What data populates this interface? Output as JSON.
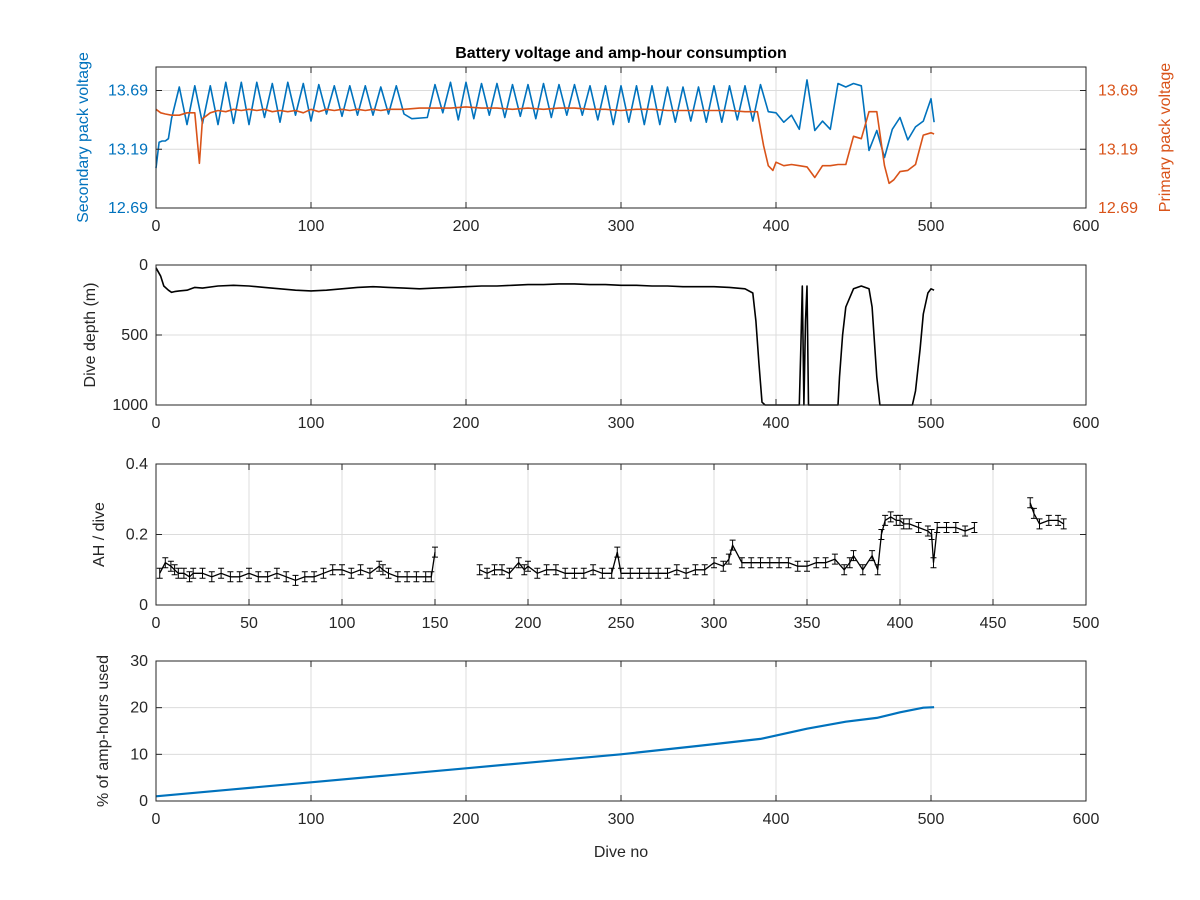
{
  "figure": {
    "title": "Battery voltage and amp-hour consumption"
  },
  "colors": {
    "secondary": "#0072bd",
    "primary": "#d95319",
    "black": "#000000",
    "blue_line": "#0072bd"
  },
  "chart_data": [
    {
      "type": "line",
      "title": "Battery voltage and amp-hour consumption",
      "xlabel": "",
      "ylabel": "Secondary pack voltage",
      "y2label": "Primary pack voltage",
      "xlim": [
        0,
        600
      ],
      "ylim": [
        12.69,
        13.89
      ],
      "y2lim": [
        12.69,
        13.89
      ],
      "xticks": [
        "0",
        "100",
        "200",
        "300",
        "400",
        "500",
        "600"
      ],
      "yticks": [
        "12.69",
        "13.19",
        "13.69"
      ],
      "y2ticks": [
        "12.69",
        "13.19",
        "13.69"
      ],
      "grid": true,
      "series": [
        {
          "name": "Secondary pack voltage",
          "axis": "left",
          "x": [
            0,
            2,
            4,
            6,
            8,
            10,
            15,
            20,
            25,
            30,
            35,
            40,
            45,
            50,
            55,
            60,
            65,
            70,
            75,
            80,
            85,
            90,
            95,
            100,
            105,
            110,
            115,
            120,
            125,
            130,
            135,
            140,
            145,
            150,
            155,
            160,
            165,
            175,
            180,
            185,
            190,
            195,
            200,
            205,
            210,
            215,
            220,
            225,
            230,
            235,
            240,
            245,
            250,
            255,
            260,
            265,
            270,
            275,
            280,
            285,
            290,
            295,
            300,
            305,
            310,
            315,
            320,
            325,
            330,
            335,
            340,
            345,
            350,
            355,
            360,
            365,
            370,
            375,
            380,
            385,
            390,
            395,
            400,
            405,
            410,
            415,
            420,
            425,
            430,
            435,
            440,
            445,
            450,
            455,
            460,
            465,
            470,
            475,
            480,
            485,
            490,
            495,
            500,
            502
          ],
          "y": [
            13.03,
            13.25,
            13.26,
            13.26,
            13.28,
            13.45,
            13.72,
            13.4,
            13.73,
            13.41,
            13.73,
            13.4,
            13.76,
            13.41,
            13.76,
            13.4,
            13.76,
            13.46,
            13.75,
            13.42,
            13.76,
            13.48,
            13.75,
            13.43,
            13.74,
            13.49,
            13.73,
            13.47,
            13.73,
            13.48,
            13.73,
            13.48,
            13.72,
            13.49,
            13.73,
            13.49,
            13.45,
            13.46,
            13.74,
            13.5,
            13.76,
            13.44,
            13.76,
            13.45,
            13.75,
            13.48,
            13.75,
            13.46,
            13.74,
            13.47,
            13.74,
            13.45,
            13.75,
            13.46,
            13.74,
            13.48,
            13.74,
            13.48,
            13.73,
            13.44,
            13.73,
            13.4,
            13.73,
            13.42,
            13.73,
            13.4,
            13.73,
            13.4,
            13.72,
            13.42,
            13.72,
            13.43,
            13.72,
            13.42,
            13.73,
            13.42,
            13.73,
            13.44,
            13.73,
            13.43,
            13.74,
            13.51,
            13.5,
            13.42,
            13.48,
            13.36,
            13.78,
            13.35,
            13.43,
            13.36,
            13.75,
            13.72,
            13.75,
            13.73,
            13.18,
            13.35,
            13.12,
            13.36,
            13.46,
            13.27,
            13.38,
            13.43,
            13.62,
            13.42
          ]
        },
        {
          "name": "Primary pack voltage",
          "axis": "right",
          "x": [
            0,
            3,
            6,
            10,
            15,
            20,
            25,
            28,
            30,
            35,
            40,
            45,
            50,
            55,
            60,
            65,
            70,
            75,
            80,
            85,
            90,
            95,
            100,
            105,
            110,
            115,
            120,
            125,
            130,
            135,
            140,
            145,
            150,
            160,
            170,
            180,
            190,
            200,
            210,
            220,
            230,
            240,
            250,
            260,
            270,
            280,
            290,
            300,
            310,
            320,
            330,
            340,
            350,
            360,
            370,
            380,
            388,
            392,
            395,
            398,
            400,
            405,
            410,
            415,
            420,
            425,
            430,
            435,
            440,
            445,
            450,
            455,
            460,
            465,
            470,
            473,
            476,
            480,
            485,
            490,
            495,
            500,
            502
          ],
          "y": [
            13.53,
            13.5,
            13.49,
            13.48,
            13.48,
            13.5,
            13.5,
            13.07,
            13.45,
            13.5,
            13.52,
            13.51,
            13.53,
            13.52,
            13.53,
            13.52,
            13.53,
            13.51,
            13.52,
            13.51,
            13.52,
            13.5,
            13.53,
            13.51,
            13.53,
            13.52,
            13.53,
            13.52,
            13.53,
            13.52,
            13.53,
            13.52,
            13.53,
            13.53,
            13.54,
            13.54,
            13.54,
            13.55,
            13.54,
            13.54,
            13.53,
            13.54,
            13.53,
            13.54,
            13.54,
            13.53,
            13.53,
            13.52,
            13.53,
            13.53,
            13.52,
            13.52,
            13.52,
            13.52,
            13.52,
            13.51,
            13.51,
            13.22,
            13.05,
            13.01,
            13.08,
            13.05,
            13.06,
            13.05,
            13.04,
            12.95,
            13.05,
            13.05,
            13.06,
            13.06,
            13.3,
            13.28,
            13.51,
            13.51,
            13.05,
            12.9,
            12.93,
            13.0,
            13.01,
            13.06,
            13.31,
            13.33,
            13.32
          ]
        }
      ]
    },
    {
      "type": "line",
      "title": "",
      "xlabel": "",
      "ylabel": "Dive depth (m)",
      "xlim": [
        0,
        600
      ],
      "ylim": [
        0,
        1000
      ],
      "y_reversed": true,
      "xticks": [
        "0",
        "100",
        "200",
        "300",
        "400",
        "500",
        "600"
      ],
      "yticks": [
        "0",
        "500",
        "1000"
      ],
      "grid": true,
      "series": [
        {
          "x": [
            0,
            3,
            5,
            8,
            10,
            12,
            15,
            20,
            25,
            30,
            40,
            50,
            60,
            70,
            80,
            90,
            100,
            110,
            120,
            130,
            140,
            150,
            160,
            170,
            180,
            190,
            200,
            210,
            220,
            230,
            240,
            250,
            260,
            270,
            280,
            290,
            300,
            310,
            320,
            330,
            340,
            350,
            360,
            370,
            380,
            385,
            387,
            389,
            391,
            393,
            395,
            400,
            405,
            410,
            415,
            416,
            417,
            418,
            419,
            420,
            421,
            425,
            430,
            435,
            438,
            440,
            441,
            443,
            445,
            450,
            455,
            460,
            462,
            465,
            467,
            470,
            475,
            480,
            488,
            490,
            493,
            495,
            498,
            500,
            502
          ],
          "y": [
            20,
            80,
            150,
            180,
            195,
            190,
            185,
            180,
            160,
            165,
            150,
            145,
            150,
            160,
            170,
            180,
            185,
            180,
            170,
            160,
            155,
            160,
            165,
            170,
            165,
            160,
            155,
            150,
            150,
            145,
            140,
            140,
            135,
            135,
            140,
            140,
            145,
            145,
            150,
            150,
            155,
            155,
            155,
            160,
            170,
            200,
            400,
            700,
            980,
            1000,
            1000,
            1000,
            1000,
            1000,
            1000,
            600,
            150,
            1000,
            400,
            150,
            1000,
            1000,
            1000,
            1000,
            1000,
            1000,
            800,
            500,
            300,
            170,
            150,
            170,
            300,
            800,
            1000,
            1000,
            1000,
            1000,
            1000,
            900,
            600,
            350,
            200,
            170,
            180
          ]
        }
      ]
    },
    {
      "type": "scatter",
      "title": "",
      "xlabel": "",
      "ylabel": "AH / dive",
      "xlim": [
        0,
        500
      ],
      "ylim": [
        0,
        0.4
      ],
      "xticks": [
        "0",
        "50",
        "100",
        "150",
        "200",
        "250",
        "300",
        "350",
        "400",
        "450",
        "500"
      ],
      "yticks": [
        "0",
        "0.2",
        "0.4"
      ],
      "grid": true,
      "series": [
        {
          "x": [
            2,
            5,
            8,
            10,
            12,
            15,
            18,
            20,
            25,
            30,
            35,
            40,
            45,
            50,
            55,
            60,
            65,
            70,
            75,
            80,
            85,
            90,
            95,
            100,
            105,
            110,
            115,
            120,
            122,
            125,
            130,
            135,
            140,
            145,
            148,
            150,
            174,
            178,
            182,
            186,
            190,
            195,
            198,
            200,
            205,
            210,
            215,
            220,
            225,
            230,
            235,
            240,
            245,
            248,
            250,
            255,
            260,
            265,
            270,
            275,
            280,
            285,
            290,
            295,
            300,
            305,
            308,
            310,
            315,
            320,
            325,
            330,
            335,
            340,
            345,
            350,
            355,
            360,
            365,
            370,
            373,
            375,
            380,
            385,
            388,
            390,
            392,
            395,
            398,
            400,
            402,
            405,
            410,
            415,
            417,
            418,
            420,
            425,
            430,
            435,
            440,
            470,
            472,
            475,
            480,
            485,
            488
          ],
          "y": [
            0.09,
            0.12,
            0.11,
            0.1,
            0.09,
            0.09,
            0.08,
            0.09,
            0.09,
            0.08,
            0.09,
            0.08,
            0.08,
            0.09,
            0.08,
            0.08,
            0.09,
            0.08,
            0.07,
            0.08,
            0.08,
            0.09,
            0.1,
            0.1,
            0.09,
            0.1,
            0.09,
            0.11,
            0.1,
            0.09,
            0.08,
            0.08,
            0.08,
            0.08,
            0.08,
            0.15,
            0.1,
            0.09,
            0.1,
            0.1,
            0.09,
            0.12,
            0.1,
            0.11,
            0.09,
            0.1,
            0.1,
            0.09,
            0.09,
            0.09,
            0.1,
            0.09,
            0.09,
            0.15,
            0.09,
            0.09,
            0.09,
            0.09,
            0.09,
            0.09,
            0.1,
            0.09,
            0.1,
            0.1,
            0.12,
            0.11,
            0.13,
            0.17,
            0.12,
            0.12,
            0.12,
            0.12,
            0.12,
            0.12,
            0.11,
            0.11,
            0.12,
            0.12,
            0.13,
            0.1,
            0.12,
            0.14,
            0.1,
            0.14,
            0.1,
            0.2,
            0.24,
            0.25,
            0.24,
            0.24,
            0.23,
            0.23,
            0.22,
            0.21,
            0.2,
            0.12,
            0.22,
            0.22,
            0.22,
            0.21,
            0.22,
            0.29,
            0.26,
            0.23,
            0.24,
            0.24,
            0.23
          ]
        }
      ]
    },
    {
      "type": "line",
      "title": "",
      "xlabel": "Dive no",
      "ylabel": "% of amp-hours used",
      "xlim": [
        0,
        600
      ],
      "ylim": [
        0,
        30
      ],
      "xticks": [
        "0",
        "100",
        "200",
        "300",
        "400",
        "500",
        "600"
      ],
      "yticks": [
        "0",
        "10",
        "20",
        "30"
      ],
      "grid": true,
      "series": [
        {
          "x": [
            0,
            50,
            100,
            150,
            200,
            250,
            300,
            350,
            390,
            420,
            445,
            465,
            480,
            495,
            502
          ],
          "y": [
            1,
            2.5,
            4,
            5.5,
            7,
            8.5,
            10,
            11.8,
            13.3,
            15.5,
            17,
            17.8,
            19,
            20,
            20.1
          ]
        }
      ]
    }
  ]
}
